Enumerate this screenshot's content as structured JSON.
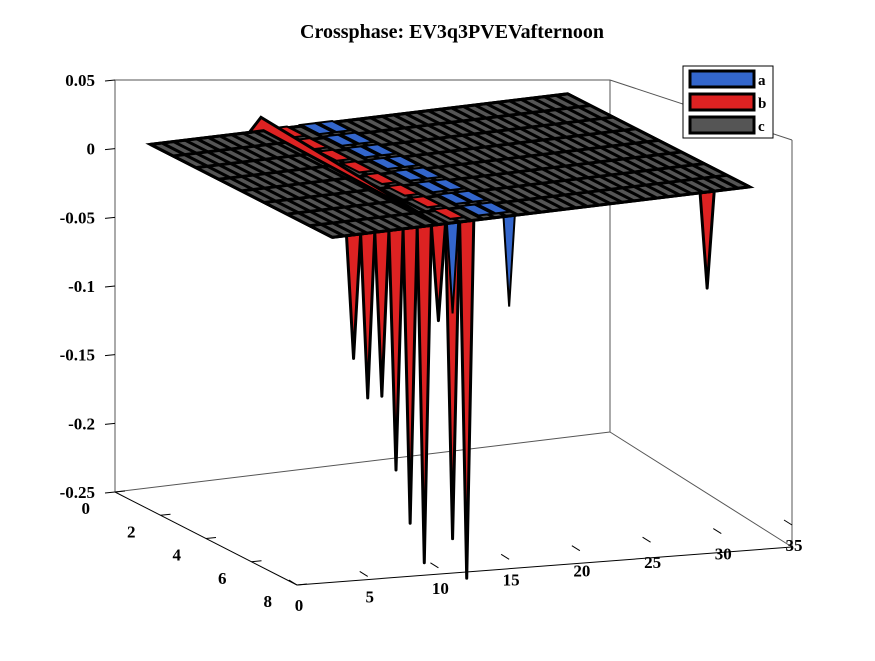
{
  "chart_data": {
    "type": "surface3d",
    "title": "Crossphase: EV3q3PVEVafternoon",
    "z_ticks": [
      "0.05",
      "0",
      "-0.05",
      "-0.1",
      "-0.15",
      "-0.2",
      "-0.25"
    ],
    "x_ticks": [
      "0",
      "5",
      "10",
      "15",
      "20",
      "25",
      "30",
      "35"
    ],
    "y_ticks": [
      "0",
      "2",
      "4",
      "6",
      "8"
    ],
    "xlim": [
      0,
      35
    ],
    "ylim": [
      0,
      8
    ],
    "zlim": [
      -0.25,
      0.05
    ],
    "legend": {
      "placement": "top-right",
      "entries": [
        {
          "label": "a",
          "color": "#3366cc"
        },
        {
          "label": "b",
          "color": "#dd2222"
        },
        {
          "label": "c",
          "color": "#555555"
        }
      ]
    },
    "series": [
      {
        "name": "a",
        "color": "#3366cc",
        "description_level": 0,
        "dips": [
          {
            "x": 11,
            "y": 8,
            "z": -0.066
          },
          {
            "x": 15,
            "y": 8,
            "z": -0.066
          }
        ]
      },
      {
        "name": "b",
        "color": "#dd2222",
        "dips": [
          {
            "x": 4,
            "z": -0.09
          },
          {
            "x": 5,
            "z": -0.12
          },
          {
            "x": 6,
            "z": -0.12
          },
          {
            "x": 7,
            "z": -0.175
          },
          {
            "x": 8,
            "z": -0.215
          },
          {
            "x": 9,
            "z": -0.245
          },
          {
            "x": 10,
            "z": -0.07
          },
          {
            "x": 11,
            "z": -0.23
          },
          {
            "x": 12,
            "z": -0.26
          },
          {
            "x": 29,
            "z": -0.07
          }
        ],
        "ridge": [
          {
            "x": 10,
            "z": 0.012
          },
          {
            "x": 14,
            "z": 0.005
          }
        ]
      },
      {
        "name": "c",
        "color": "#555555",
        "z": 0
      }
    ]
  }
}
